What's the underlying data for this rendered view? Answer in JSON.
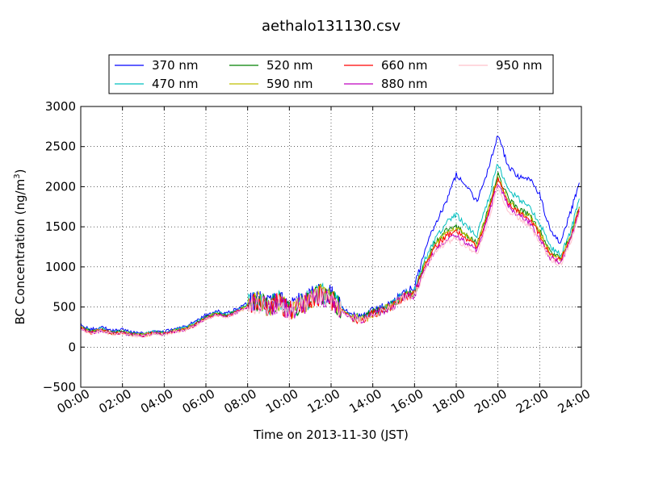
{
  "chart_data": {
    "type": "line",
    "title": "aethalo131130.csv",
    "xlabel": "Time on 2013-11-30 (JST)",
    "ylabel": "BC Concentration (ng/m",
    "ylabel_sup": "3",
    "ylabel_close": ")",
    "xlim": [
      0,
      24
    ],
    "ylim": [
      -500,
      3000
    ],
    "x_ticks": [
      0,
      2,
      4,
      6,
      8,
      10,
      12,
      14,
      16,
      18,
      20,
      22,
      24
    ],
    "x_tick_labels": [
      "00:00",
      "02:00",
      "04:00",
      "06:00",
      "08:00",
      "10:00",
      "12:00",
      "14:00",
      "16:00",
      "18:00",
      "20:00",
      "22:00",
      "24:00"
    ],
    "y_ticks": [
      -500,
      0,
      500,
      1000,
      1500,
      2000,
      2500,
      3000
    ],
    "y_tick_labels": [
      "−500",
      "0",
      "500",
      "1000",
      "1500",
      "2000",
      "2500",
      "3000"
    ],
    "grid": true,
    "legend_position": "top-center",
    "x": [
      0.0,
      0.5,
      1.0,
      1.5,
      2.0,
      2.5,
      3.0,
      3.5,
      4.0,
      4.5,
      5.0,
      5.5,
      6.0,
      6.5,
      7.0,
      7.5,
      8.0,
      8.5,
      9.0,
      9.5,
      10.0,
      10.5,
      11.0,
      11.5,
      12.0,
      12.5,
      13.0,
      13.5,
      14.0,
      14.5,
      15.0,
      15.5,
      16.0,
      16.5,
      17.0,
      17.5,
      18.0,
      18.5,
      19.0,
      19.5,
      20.0,
      20.5,
      21.0,
      21.5,
      22.0,
      22.5,
      23.0,
      23.5,
      23.9
    ],
    "series": [
      {
        "name": "370 nm",
        "color": "#0000ff",
        "values": [
          280,
          220,
          250,
          200,
          220,
          180,
          170,
          200,
          190,
          230,
          250,
          320,
          400,
          450,
          420,
          480,
          550,
          600,
          520,
          600,
          480,
          560,
          620,
          700,
          650,
          500,
          400,
          380,
          450,
          500,
          560,
          700,
          750,
          1200,
          1550,
          1800,
          2150,
          2000,
          1800,
          2200,
          2650,
          2250,
          2120,
          2100,
          1900,
          1450,
          1300,
          1700,
          2050
        ]
      },
      {
        "name": "470 nm",
        "color": "#00bfbf",
        "values": [
          260,
          200,
          230,
          190,
          200,
          170,
          160,
          190,
          180,
          220,
          240,
          300,
          380,
          430,
          400,
          460,
          530,
          580,
          500,
          580,
          460,
          540,
          600,
          680,
          620,
          480,
          380,
          360,
          430,
          480,
          540,
          660,
          700,
          1100,
          1350,
          1550,
          1650,
          1500,
          1400,
          1800,
          2300,
          1950,
          1850,
          1750,
          1550,
          1250,
          1150,
          1450,
          1850
        ]
      },
      {
        "name": "520 nm",
        "color": "#008000",
        "values": [
          250,
          190,
          220,
          180,
          190,
          160,
          150,
          180,
          170,
          210,
          230,
          290,
          370,
          420,
          390,
          450,
          520,
          570,
          490,
          570,
          450,
          530,
          590,
          670,
          610,
          470,
          370,
          350,
          420,
          470,
          530,
          640,
          680,
          1050,
          1300,
          1450,
          1500,
          1400,
          1300,
          1700,
          2150,
          1850,
          1720,
          1650,
          1450,
          1180,
          1100,
          1400,
          1750
        ]
      },
      {
        "name": "590 nm",
        "color": "#bfbf00",
        "values": [
          245,
          185,
          215,
          175,
          185,
          158,
          148,
          178,
          168,
          205,
          225,
          285,
          365,
          415,
          385,
          445,
          515,
          565,
          485,
          565,
          445,
          525,
          585,
          665,
          605,
          465,
          365,
          345,
          415,
          465,
          525,
          635,
          670,
          1030,
          1280,
          1420,
          1480,
          1380,
          1280,
          1680,
          2120,
          1820,
          1700,
          1630,
          1430,
          1170,
          1090,
          1390,
          1740
        ]
      },
      {
        "name": "660 nm",
        "color": "#ff0000",
        "values": [
          240,
          180,
          210,
          170,
          180,
          155,
          145,
          175,
          165,
          200,
          220,
          280,
          360,
          410,
          380,
          440,
          510,
          560,
          480,
          560,
          440,
          520,
          580,
          660,
          600,
          460,
          360,
          340,
          410,
          460,
          520,
          630,
          660,
          1000,
          1250,
          1380,
          1450,
          1350,
          1250,
          1650,
          2100,
          1800,
          1680,
          1600,
          1400,
          1150,
          1070,
          1370,
          1720
        ]
      },
      {
        "name": "880 nm",
        "color": "#bf00bf",
        "values": [
          235,
          175,
          205,
          165,
          175,
          150,
          140,
          170,
          160,
          195,
          215,
          275,
          355,
          405,
          375,
          435,
          505,
          555,
          475,
          555,
          435,
          515,
          575,
          655,
          595,
          455,
          355,
          335,
          405,
          455,
          515,
          620,
          650,
          980,
          1220,
          1330,
          1400,
          1300,
          1200,
          1600,
          2050,
          1750,
          1640,
          1560,
          1360,
          1120,
          1040,
          1340,
          1700
        ]
      },
      {
        "name": "950 nm",
        "color": "#ffc0cb",
        "values": [
          230,
          170,
          200,
          160,
          170,
          145,
          135,
          165,
          155,
          190,
          210,
          270,
          350,
          400,
          370,
          430,
          500,
          550,
          470,
          550,
          430,
          510,
          570,
          650,
          590,
          450,
          350,
          330,
          400,
          450,
          510,
          610,
          640,
          960,
          1200,
          1300,
          1350,
          1250,
          1150,
          1550,
          2000,
          1700,
          1600,
          1520,
          1320,
          1100,
          1020,
          1320,
          1680
        ]
      }
    ]
  }
}
